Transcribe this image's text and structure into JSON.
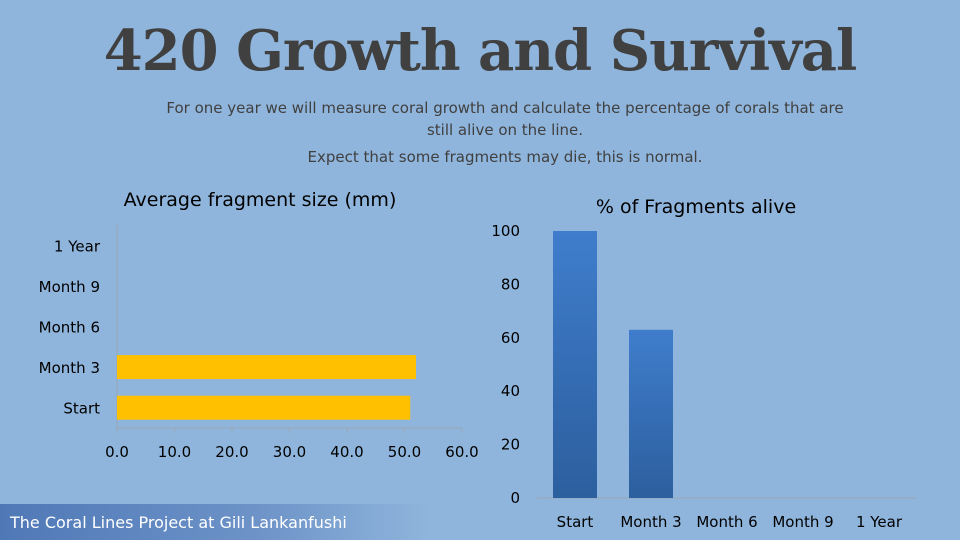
{
  "slide": {
    "title": "420 Growth and Survival",
    "subtitle": "For one year we will measure coral growth and calculate the percentage of corals that are still alive on the line.",
    "note": "Expect that some fragments may die, this is normal.",
    "footer": "The Coral Lines Project at Gili Lankanfushi"
  },
  "chart_data": [
    {
      "type": "bar",
      "orientation": "horizontal",
      "title": "Average fragment size (mm)",
      "categories": [
        "Start",
        "Month 3",
        "Month 6",
        "Month 9",
        "1 Year"
      ],
      "values": [
        51.0,
        52.0,
        null,
        null,
        null
      ],
      "xlim": [
        0,
        60
      ],
      "ticks": [
        "0.0",
        "10.0",
        "20.0",
        "30.0",
        "40.0",
        "50.0",
        "60.0"
      ],
      "color": "#ffc000",
      "grid": false
    },
    {
      "type": "bar",
      "orientation": "vertical",
      "title": "% of Fragments alive",
      "categories": [
        "Start",
        "Month 3",
        "Month 6",
        "Month 9",
        "1 Year"
      ],
      "values": [
        100,
        63,
        null,
        null,
        null
      ],
      "ylim": [
        0,
        100
      ],
      "ticks": [
        "0",
        "20",
        "40",
        "60",
        "80",
        "100"
      ],
      "color": "#3a72bd",
      "grid": false
    }
  ]
}
